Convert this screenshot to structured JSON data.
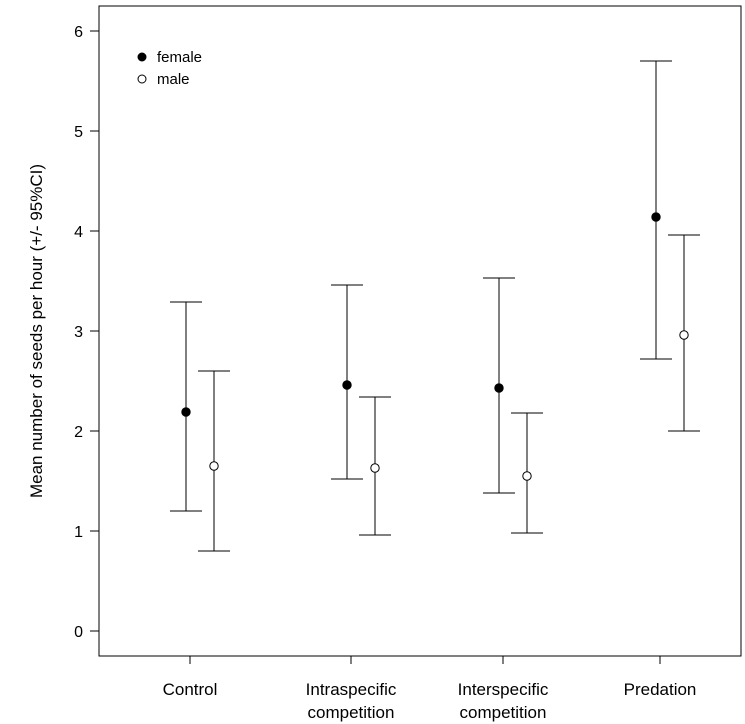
{
  "chart_data": {
    "type": "scatter",
    "subtype": "point-with-error-bars",
    "ylabel": "Mean number of seeds per hour (+/- 95%CI)",
    "xlabel": "",
    "title": "",
    "categories": [
      [
        "Control"
      ],
      [
        "Intraspecific",
        "competition"
      ],
      [
        "Interspecific",
        "competition"
      ],
      [
        "Predation"
      ]
    ],
    "ylim": [
      -0.25,
      6.25
    ],
    "yticks": [
      "0",
      "1",
      "2",
      "3",
      "4",
      "5",
      "6"
    ],
    "grid": false,
    "legend_position": "top-left",
    "series": [
      {
        "name": "female",
        "marker": "filled-circle",
        "color": "#000000",
        "values": [
          2.19,
          2.46,
          2.43,
          4.14
        ],
        "ci_lower": [
          1.2,
          1.52,
          1.38,
          2.72
        ],
        "ci_upper": [
          3.29,
          3.46,
          3.53,
          5.7
        ]
      },
      {
        "name": "male",
        "marker": "open-circle",
        "color": "#000000",
        "values": [
          1.65,
          1.63,
          1.55,
          2.96
        ],
        "ci_lower": [
          0.8,
          0.96,
          0.98,
          2.0
        ],
        "ci_upper": [
          2.6,
          2.34,
          2.18,
          3.96
        ]
      }
    ]
  }
}
